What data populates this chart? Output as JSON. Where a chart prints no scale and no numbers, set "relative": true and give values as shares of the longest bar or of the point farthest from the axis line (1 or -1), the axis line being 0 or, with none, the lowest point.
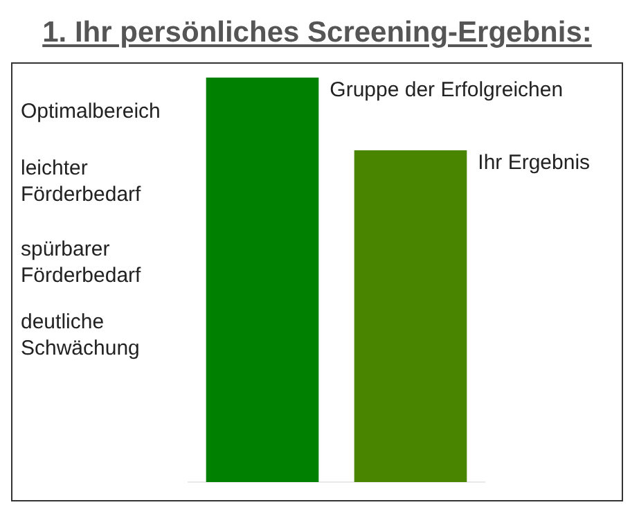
{
  "chart_data": {
    "type": "bar",
    "title": "1. Ihr persönliches Screening-Ergebnis:",
    "relative": true,
    "categories": [
      null,
      null
    ],
    "values": [
      1,
      0.82
    ],
    "colors": [
      "#008000",
      "#4a8500"
    ],
    "annotations": [
      "Optimalbereich",
      "leichter Förderbedarf",
      "spürbarer Förderbedarf",
      "deutliche Schwächung",
      "Gruppe der Erfolgreichen",
      "Ihr Ergebnis"
    ],
    "legend": false
  }
}
